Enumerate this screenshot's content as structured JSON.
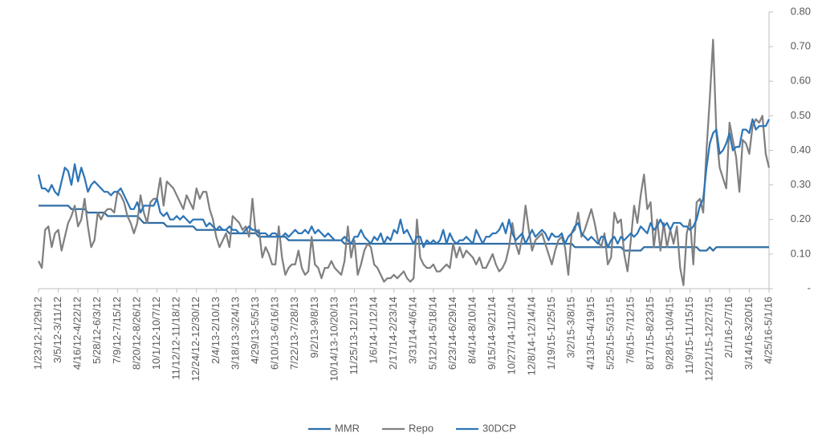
{
  "chart_data": {
    "type": "line",
    "categories": [
      "1/23/12-1/29/12",
      null,
      null,
      null,
      null,
      null,
      "3/5/12-3/11/12",
      null,
      null,
      null,
      null,
      null,
      "4/16/12-4/22/12",
      null,
      null,
      null,
      null,
      null,
      "5/28/12-6/3/12",
      null,
      null,
      null,
      null,
      null,
      "7/9/12-7/15/12",
      null,
      null,
      null,
      null,
      null,
      "8/20/12-8/26/12",
      null,
      null,
      null,
      null,
      null,
      "10/1/12-10/7/12",
      null,
      null,
      null,
      null,
      null,
      "11/12/12-11/18/12",
      null,
      null,
      null,
      null,
      null,
      "12/24/12-12/30/12",
      null,
      null,
      null,
      null,
      null,
      "2/4/13-2/10/13",
      null,
      null,
      null,
      null,
      null,
      "3/18/13-3/24/13",
      null,
      null,
      null,
      null,
      null,
      "4/29/13-5/5/13",
      null,
      null,
      null,
      null,
      null,
      "6/10/13-6/16/13",
      null,
      null,
      null,
      null,
      null,
      "7/22/13-7/28/13",
      null,
      null,
      null,
      null,
      null,
      "9/2/13-9/8/13",
      null,
      null,
      null,
      null,
      null,
      "10/14/13-10/20/13",
      null,
      null,
      null,
      null,
      null,
      "11/25/13-12/1/13",
      null,
      null,
      null,
      null,
      null,
      "1/6/14-1/12/14",
      null,
      null,
      null,
      null,
      null,
      "2/17/14-2/23/14",
      null,
      null,
      null,
      null,
      null,
      "3/31/14-4/6/14",
      null,
      null,
      null,
      null,
      null,
      "5/12/14-5/18/14",
      null,
      null,
      null,
      null,
      null,
      "6/23/14-6/29/14",
      null,
      null,
      null,
      null,
      null,
      "8/4/14-8/10/14",
      null,
      null,
      null,
      null,
      null,
      "9/15/14-9/21/14",
      null,
      null,
      null,
      null,
      null,
      "10/27/14-11/2/14",
      null,
      null,
      null,
      null,
      null,
      "12/8/14-12/14/14",
      null,
      null,
      null,
      null,
      null,
      "1/19/15-1/25/15",
      null,
      null,
      null,
      null,
      null,
      "3/2/15-3/8/15",
      null,
      null,
      null,
      null,
      null,
      "4/13/15-4/19/15",
      null,
      null,
      null,
      null,
      null,
      "5/25/15-5/31/15",
      null,
      null,
      null,
      null,
      null,
      "7/6/15-7/12/15",
      null,
      null,
      null,
      null,
      null,
      "8/17/15-8/23/15",
      null,
      null,
      null,
      null,
      null,
      "9/28/15-10/4/15",
      null,
      null,
      null,
      null,
      null,
      "11/9/15-11/15/15",
      null,
      null,
      null,
      null,
      null,
      "12/21/15-12/27/15",
      null,
      null,
      null,
      null,
      null,
      "2/1/16-2/7/16",
      null,
      null,
      null,
      null,
      null,
      "3/14/16-3/20/16",
      null,
      null,
      null,
      null,
      null,
      "4/25/16-5/1/16"
    ],
    "series": [
      {
        "name": "MMR",
        "color": "#2e6da4",
        "values": [
          0.24,
          0.24,
          0.24,
          0.24,
          0.24,
          0.24,
          0.24,
          0.24,
          0.24,
          0.24,
          0.23,
          0.23,
          0.23,
          0.23,
          0.23,
          0.22,
          0.22,
          0.22,
          0.22,
          0.22,
          0.22,
          0.21,
          0.21,
          0.21,
          0.21,
          0.21,
          0.21,
          0.21,
          0.21,
          0.21,
          0.21,
          0.2,
          0.19,
          0.19,
          0.19,
          0.19,
          0.19,
          0.19,
          0.19,
          0.18,
          0.18,
          0.18,
          0.18,
          0.18,
          0.18,
          0.18,
          0.18,
          0.18,
          0.17,
          0.17,
          0.17,
          0.17,
          0.17,
          0.17,
          0.17,
          0.17,
          0.17,
          0.17,
          0.16,
          0.16,
          0.16,
          0.16,
          0.16,
          0.16,
          0.16,
          0.16,
          0.16,
          0.15,
          0.15,
          0.15,
          0.15,
          0.15,
          0.15,
          0.15,
          0.15,
          0.15,
          0.14,
          0.14,
          0.14,
          0.14,
          0.14,
          0.14,
          0.14,
          0.14,
          0.14,
          0.14,
          0.14,
          0.14,
          0.14,
          0.14,
          0.14,
          0.14,
          0.14,
          0.13,
          0.13,
          0.13,
          0.13,
          0.13,
          0.13,
          0.13,
          0.13,
          0.13,
          0.13,
          0.13,
          0.13,
          0.13,
          0.13,
          0.13,
          0.13,
          0.13,
          0.13,
          0.13,
          0.13,
          0.13,
          0.13,
          0.13,
          0.13,
          0.13,
          0.13,
          0.13,
          0.13,
          0.13,
          0.13,
          0.13,
          0.13,
          0.13,
          0.13,
          0.13,
          0.13,
          0.13,
          0.13,
          0.13,
          0.13,
          0.13,
          0.13,
          0.13,
          0.13,
          0.13,
          0.13,
          0.13,
          0.13,
          0.13,
          0.13,
          0.13,
          0.13,
          0.13,
          0.13,
          0.13,
          0.13,
          0.13,
          0.13,
          0.13,
          0.13,
          0.13,
          0.13,
          0.13,
          0.13,
          0.13,
          0.13,
          0.13,
          0.13,
          0.13,
          0.13,
          0.12,
          0.12,
          0.12,
          0.12,
          0.12,
          0.12,
          0.12,
          0.12,
          0.12,
          0.12,
          0.12,
          0.12,
          0.12,
          0.12,
          0.12,
          0.11,
          0.11,
          0.11,
          0.11,
          0.11,
          0.11,
          0.12,
          0.12,
          0.12,
          0.12,
          0.12,
          0.12,
          0.12,
          0.12,
          0.12,
          0.12,
          0.12,
          0.12,
          0.12,
          0.12,
          0.12,
          0.12,
          0.12,
          0.11,
          0.11,
          0.11,
          0.12,
          0.11,
          0.12,
          0.12,
          0.12,
          0.12,
          0.12,
          0.12,
          0.12,
          0.12,
          0.12,
          0.12,
          0.12,
          0.12,
          0.12,
          0.12,
          0.12,
          0.12,
          0.12
        ]
      },
      {
        "name": "Repo",
        "color": "#808080",
        "values": [
          0.08,
          0.06,
          0.17,
          0.18,
          0.12,
          0.16,
          0.17,
          0.11,
          0.15,
          0.19,
          0.21,
          0.24,
          0.18,
          0.2,
          0.26,
          0.18,
          0.12,
          0.14,
          0.22,
          0.2,
          0.22,
          0.23,
          0.23,
          0.22,
          0.28,
          0.27,
          0.25,
          0.21,
          0.19,
          0.16,
          0.19,
          0.27,
          0.22,
          0.19,
          0.25,
          0.26,
          0.26,
          0.32,
          0.24,
          0.31,
          0.3,
          0.29,
          0.27,
          0.25,
          0.23,
          0.27,
          0.25,
          0.23,
          0.29,
          0.26,
          0.28,
          0.28,
          0.23,
          0.2,
          0.15,
          0.12,
          0.14,
          0.16,
          0.12,
          0.21,
          0.2,
          0.19,
          0.17,
          0.18,
          0.15,
          0.26,
          0.16,
          0.17,
          0.09,
          0.12,
          0.1,
          0.07,
          0.07,
          0.18,
          0.09,
          0.04,
          0.06,
          0.07,
          0.07,
          0.11,
          0.06,
          0.04,
          0.05,
          0.15,
          0.07,
          0.06,
          0.03,
          0.06,
          0.06,
          0.08,
          0.06,
          0.05,
          0.04,
          0.08,
          0.18,
          0.09,
          0.14,
          0.04,
          0.07,
          0.11,
          0.13,
          0.12,
          0.07,
          0.06,
          0.04,
          0.02,
          0.03,
          0.03,
          0.04,
          0.03,
          0.04,
          0.05,
          0.03,
          0.02,
          0.03,
          0.2,
          0.09,
          0.07,
          0.06,
          0.06,
          0.07,
          0.05,
          0.05,
          0.06,
          0.07,
          0.06,
          0.13,
          0.09,
          0.12,
          0.09,
          0.11,
          0.1,
          0.09,
          0.07,
          0.09,
          0.06,
          0.06,
          0.08,
          0.1,
          0.07,
          0.05,
          0.06,
          0.08,
          0.12,
          0.19,
          0.13,
          0.1,
          0.15,
          0.24,
          0.17,
          0.11,
          0.14,
          0.15,
          0.16,
          0.13,
          0.1,
          0.07,
          0.11,
          0.14,
          0.15,
          0.12,
          0.04,
          0.16,
          0.17,
          0.22,
          0.15,
          0.17,
          0.2,
          0.23,
          0.19,
          0.14,
          0.12,
          0.16,
          0.07,
          0.09,
          0.22,
          0.19,
          0.2,
          0.1,
          0.05,
          0.14,
          0.24,
          0.19,
          0.27,
          0.33,
          0.23,
          0.25,
          0.12,
          0.2,
          0.11,
          0.19,
          0.12,
          0.17,
          0.13,
          0.18,
          0.06,
          0.01,
          0.16,
          0.2,
          0.07,
          0.25,
          0.26,
          0.22,
          0.4,
          0.55,
          0.72,
          0.45,
          0.35,
          0.32,
          0.29,
          0.48,
          0.43,
          0.38,
          0.28,
          0.43,
          0.42,
          0.39,
          0.47,
          0.49,
          0.48,
          0.5,
          0.39,
          0.35
        ]
      },
      {
        "name": "30DCP",
        "color": "#2e75b6",
        "values": [
          0.33,
          0.29,
          0.29,
          0.28,
          0.3,
          0.28,
          0.27,
          0.31,
          0.35,
          0.34,
          0.3,
          0.36,
          0.31,
          0.35,
          0.32,
          0.28,
          0.3,
          0.31,
          0.3,
          0.29,
          0.28,
          0.28,
          0.27,
          0.28,
          0.28,
          0.29,
          0.27,
          0.25,
          0.23,
          0.23,
          0.25,
          0.22,
          0.24,
          0.24,
          0.24,
          0.24,
          0.26,
          0.22,
          0.21,
          0.22,
          0.2,
          0.2,
          0.21,
          0.2,
          0.21,
          0.2,
          0.19,
          0.2,
          0.2,
          0.2,
          0.2,
          0.18,
          0.19,
          0.18,
          0.17,
          0.18,
          0.17,
          0.17,
          0.18,
          0.17,
          0.17,
          0.16,
          0.16,
          0.17,
          0.18,
          0.17,
          0.17,
          0.16,
          0.16,
          0.16,
          0.15,
          0.16,
          0.16,
          0.15,
          0.15,
          0.16,
          0.15,
          0.16,
          0.17,
          0.16,
          0.16,
          0.17,
          0.16,
          0.18,
          0.16,
          0.17,
          0.16,
          0.15,
          0.16,
          0.15,
          0.14,
          0.14,
          0.14,
          0.15,
          0.14,
          0.13,
          0.15,
          0.15,
          0.17,
          0.15,
          0.14,
          0.13,
          0.15,
          0.14,
          0.16,
          0.13,
          0.15,
          0.14,
          0.17,
          0.16,
          0.2,
          0.16,
          0.17,
          0.15,
          0.13,
          0.15,
          0.15,
          0.12,
          0.14,
          0.13,
          0.14,
          0.13,
          0.14,
          0.17,
          0.13,
          0.16,
          0.14,
          0.13,
          0.14,
          0.14,
          0.15,
          0.14,
          0.13,
          0.17,
          0.15,
          0.13,
          0.15,
          0.15,
          0.16,
          0.16,
          0.17,
          0.19,
          0.16,
          0.2,
          0.16,
          0.14,
          0.15,
          0.16,
          0.13,
          0.15,
          0.17,
          0.15,
          0.16,
          0.17,
          0.16,
          0.14,
          0.16,
          0.15,
          0.15,
          0.16,
          0.13,
          0.15,
          0.16,
          0.18,
          0.19,
          0.16,
          0.15,
          0.14,
          0.15,
          0.14,
          0.13,
          0.15,
          0.15,
          0.12,
          0.14,
          0.15,
          0.13,
          0.15,
          0.14,
          0.15,
          0.16,
          0.15,
          0.16,
          0.18,
          0.17,
          0.16,
          0.19,
          0.17,
          0.18,
          0.2,
          0.18,
          0.19,
          0.17,
          0.19,
          0.19,
          0.19,
          0.18,
          0.18,
          0.17,
          0.18,
          0.2,
          0.24,
          0.26,
          0.35,
          0.42,
          0.45,
          0.46,
          0.39,
          0.4,
          0.42,
          0.45,
          0.4,
          0.41,
          0.41,
          0.46,
          0.46,
          0.45,
          0.49,
          0.46,
          0.47,
          0.47,
          0.47,
          0.49
        ]
      }
    ],
    "ylim": [
      0,
      0.8
    ],
    "yticks": [
      {
        "value": 0,
        "label": "-"
      },
      {
        "value": 0.1,
        "label": "0.10"
      },
      {
        "value": 0.2,
        "label": "0.20"
      },
      {
        "value": 0.3,
        "label": "0.30"
      },
      {
        "value": 0.4,
        "label": "0.40"
      },
      {
        "value": 0.5,
        "label": "0.50"
      },
      {
        "value": 0.6,
        "label": "0.60"
      },
      {
        "value": 0.7,
        "label": "0.70"
      },
      {
        "value": 0.8,
        "label": "0.80"
      }
    ],
    "grid": false,
    "legend": "bottom"
  }
}
